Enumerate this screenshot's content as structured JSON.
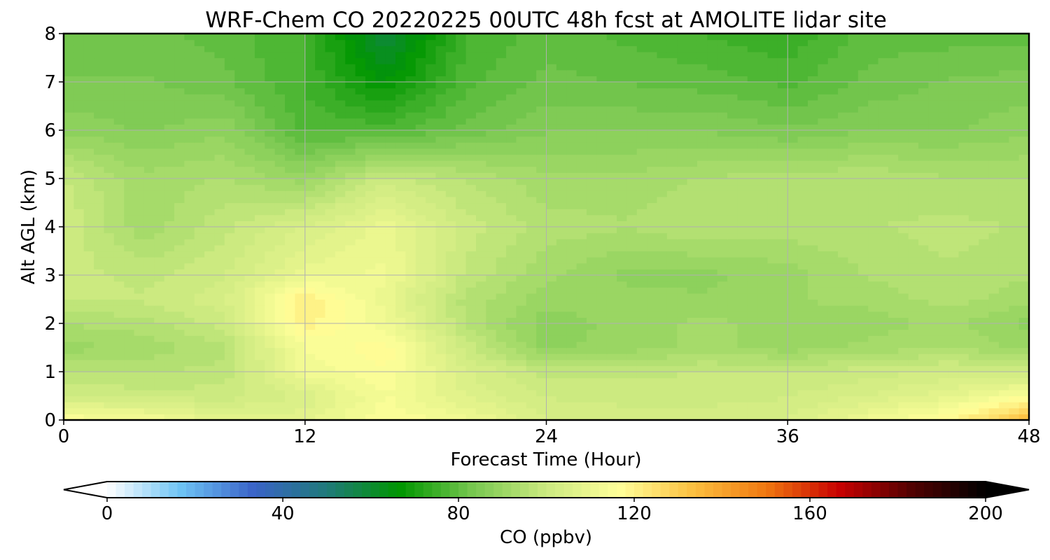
{
  "chart_data": {
    "type": "heatmap",
    "title": "WRF-Chem CO  20220225 00UTC 48h fcst at AMOLITE lidar site",
    "xlabel": "Forecast Time (Hour)",
    "ylabel": "Alt AGL (km)",
    "xlim": [
      0,
      48
    ],
    "ylim": [
      0,
      8
    ],
    "xticks": [
      "0",
      "12",
      "24",
      "36",
      "48"
    ],
    "yticks": [
      "0",
      "1",
      "2",
      "3",
      "4",
      "5",
      "6",
      "7",
      "8"
    ],
    "grid": true,
    "x_hours": [
      0,
      4,
      8,
      12,
      16,
      20,
      24,
      28,
      32,
      36,
      40,
      44,
      48
    ],
    "y_km": [
      0,
      0.5,
      1,
      1.5,
      2,
      2.5,
      3,
      4,
      5,
      6,
      7,
      8
    ],
    "co_ppbv": [
      [
        116,
        114,
        108,
        108,
        116,
        112,
        104,
        103,
        103,
        104,
        112,
        118,
        135
      ],
      [
        102,
        100,
        100,
        104,
        114,
        106,
        101,
        100,
        100,
        101,
        104,
        108,
        116
      ],
      [
        96,
        96,
        97,
        112,
        116,
        104,
        98,
        98,
        99,
        99,
        100,
        102,
        100
      ],
      [
        90,
        92,
        96,
        114,
        118,
        100,
        88,
        90,
        92,
        90,
        92,
        94,
        90
      ],
      [
        94,
        95,
        100,
        120,
        112,
        96,
        87,
        90,
        92,
        90,
        90,
        92,
        88
      ],
      [
        99,
        99,
        103,
        122,
        110,
        95,
        90,
        90,
        89,
        91,
        92,
        95,
        92
      ],
      [
        100,
        98,
        101,
        110,
        112,
        98,
        92,
        88,
        88,
        90,
        94,
        96,
        94
      ],
      [
        101,
        92,
        98,
        104,
        110,
        100,
        95,
        94,
        96,
        95,
        96,
        97,
        96
      ],
      [
        99,
        92,
        94,
        90,
        100,
        96,
        92,
        92,
        94,
        95,
        96,
        94,
        94
      ],
      [
        88,
        86,
        88,
        78,
        78,
        82,
        86,
        86,
        86,
        84,
        86,
        86,
        88
      ],
      [
        84,
        84,
        82,
        76,
        66,
        78,
        82,
        81,
        80,
        78,
        82,
        84,
        85
      ],
      [
        82,
        82,
        80,
        76,
        58,
        76,
        80,
        78,
        76,
        74,
        80,
        80,
        80
      ]
    ],
    "colorbar": {
      "label": "CO  (ppbv)",
      "min": 0,
      "max": 200,
      "ticks": [
        "0",
        "40",
        "80",
        "120",
        "160",
        "200"
      ],
      "extend": "both",
      "colors": [
        "#ffffff",
        "#6ec4f5",
        "#3a63c8",
        "#1f7a7a",
        "#009600",
        "#78c850",
        "#ccea80",
        "#ffff99",
        "#fcc040",
        "#f07810",
        "#c80000",
        "#500000",
        "#000000"
      ]
    }
  }
}
